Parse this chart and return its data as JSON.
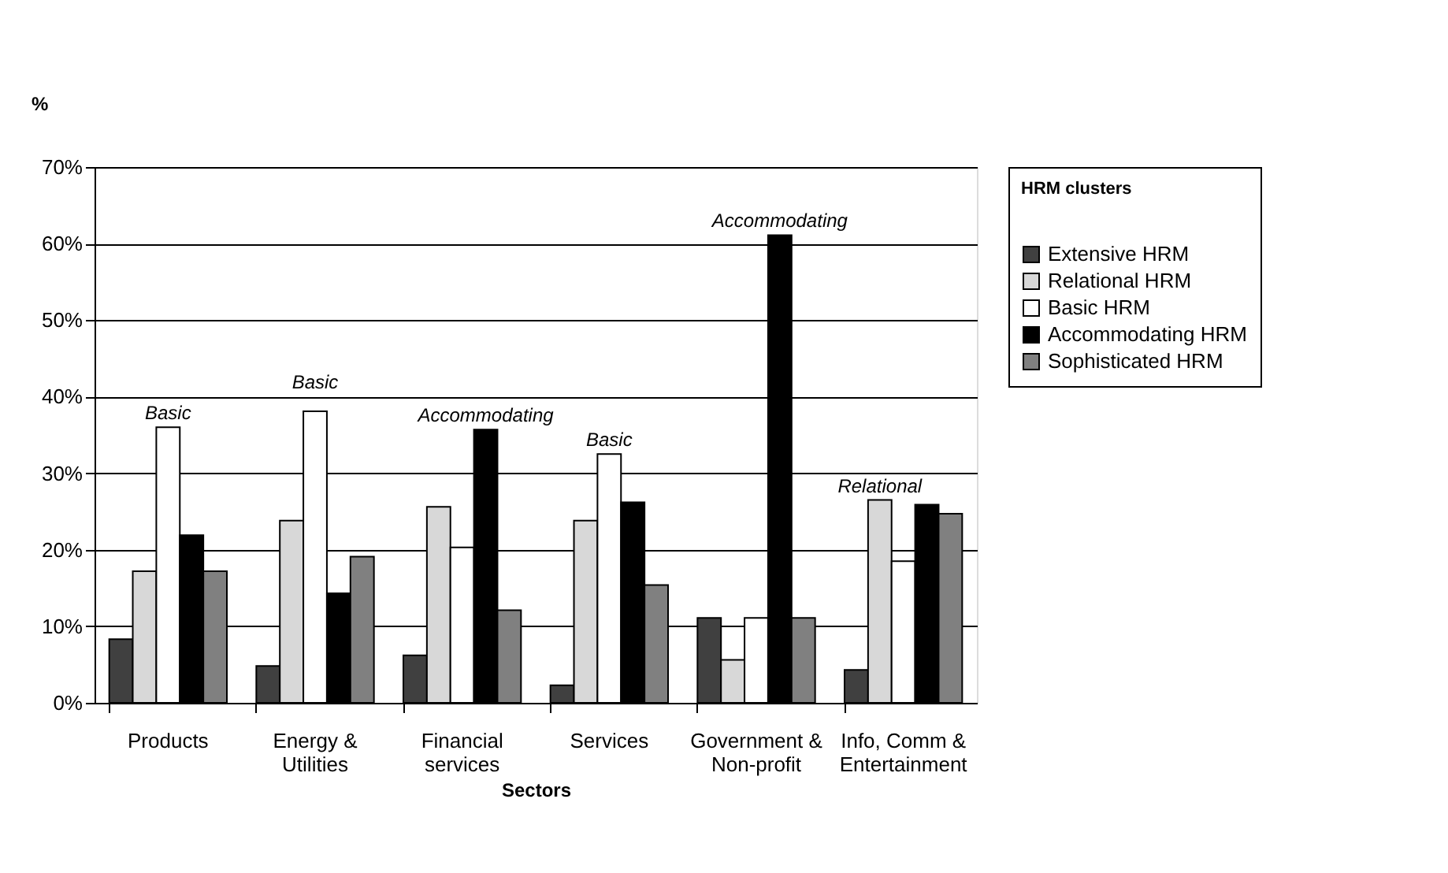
{
  "chart_data": {
    "type": "bar",
    "categories": [
      "Products",
      "Energy & Utilities",
      "Financial services",
      "Services",
      "Government & Non-profit",
      "Info, Comm & Entertainment"
    ],
    "series": [
      {
        "name": "Extensive HRM",
        "color": "#404040",
        "values": [
          8.3,
          4.8,
          6.2,
          2.3,
          11.1,
          4.3
        ]
      },
      {
        "name": "Relational HRM",
        "color": "#d8d8d8",
        "values": [
          17.2,
          23.8,
          25.6,
          23.8,
          5.6,
          26.5
        ]
      },
      {
        "name": "Basic HRM",
        "color": "#ffffff",
        "values": [
          36.0,
          38.1,
          20.3,
          32.5,
          11.1,
          18.5
        ]
      },
      {
        "name": "Accommodating HRM",
        "color": "#000000",
        "values": [
          21.9,
          14.3,
          35.7,
          26.2,
          61.1,
          25.9
        ]
      },
      {
        "name": "Sophisticated HRM",
        "color": "#808080",
        "values": [
          17.2,
          19.1,
          12.1,
          15.4,
          11.1,
          24.7
        ]
      }
    ],
    "ylabel": "%",
    "xlabel": "Sectors",
    "legend_title": "HRM clusters",
    "ylim": [
      0,
      70
    ],
    "yticks": [
      {
        "value": 0,
        "label": "0%"
      },
      {
        "value": 10,
        "label": "10%"
      },
      {
        "value": 20,
        "label": "20%"
      },
      {
        "value": 30,
        "label": "30%"
      },
      {
        "value": 40,
        "label": "40%"
      },
      {
        "value": 50,
        "label": "50%"
      },
      {
        "value": 60,
        "label": "60%"
      },
      {
        "value": 70,
        "label": "70%"
      }
    ],
    "grid": "y",
    "legend": "right",
    "annotations": [
      "Basic",
      "Basic",
      "Accommodating",
      "Basic",
      "Accommodating",
      "Relational"
    ]
  }
}
